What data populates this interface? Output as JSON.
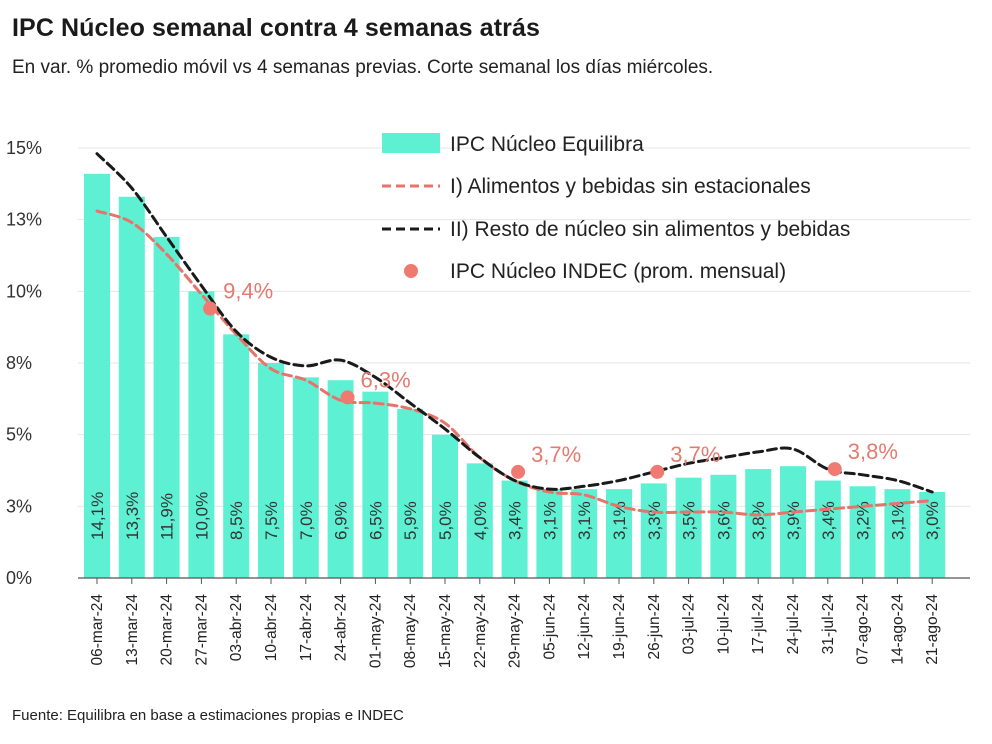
{
  "chart_data": {
    "type": "bar",
    "title": "IPC Núcleo semanal contra 4 semanas atrás",
    "subtitle": "En var. % promedio móvil vs 4 semanas previas. Corte semanal los días miércoles.",
    "source": "Fuente: Equilibra en base a estimaciones propias e INDEC",
    "ylim": [
      0,
      15
    ],
    "yticks": [
      0,
      2.5,
      5,
      7.5,
      10,
      12.5,
      15
    ],
    "ytick_labels": [
      "0%",
      "3%",
      "5%",
      "8%",
      "10%",
      "13%",
      "15%"
    ],
    "categories": [
      "06-mar-24",
      "13-mar-24",
      "20-mar-24",
      "27-mar-24",
      "03-abr-24",
      "10-abr-24",
      "17-abr-24",
      "24-abr-24",
      "01-may-24",
      "08-may-24",
      "15-may-24",
      "22-may-24",
      "29-may-24",
      "05-jun-24",
      "12-jun-24",
      "19-jun-24",
      "26-jun-24",
      "03-jul-24",
      "10-jul-24",
      "17-jul-24",
      "24-jul-24",
      "31-jul-24",
      "07-ago-24",
      "14-ago-24",
      "21-ago-24"
    ],
    "series": [
      {
        "name": "IPC Núcleo Equilibra",
        "kind": "bar",
        "color": "#5ef0d2",
        "values": [
          14.1,
          13.3,
          11.9,
          10.0,
          8.5,
          7.5,
          7.0,
          6.9,
          6.5,
          5.9,
          5.0,
          4.0,
          3.4,
          3.1,
          3.1,
          3.1,
          3.3,
          3.5,
          3.6,
          3.8,
          3.9,
          3.4,
          3.2,
          3.1,
          3.0
        ],
        "labels": [
          "14,1%",
          "13,3%",
          "11,9%",
          "10,0%",
          "8,5%",
          "7,5%",
          "7,0%",
          "6,9%",
          "6,5%",
          "5,9%",
          "5,0%",
          "4,0%",
          "3,4%",
          "3,1%",
          "3,1%",
          "3,1%",
          "3,3%",
          "3,5%",
          "3,6%",
          "3,8%",
          "3,9%",
          "3,4%",
          "3,2%",
          "3,1%",
          "3,0%"
        ]
      },
      {
        "name": "I) Alimentos y bebidas sin estacionales",
        "kind": "line",
        "style": "dashed",
        "color": "#e8736a",
        "values": [
          12.8,
          12.4,
          11.3,
          9.9,
          8.5,
          7.3,
          6.9,
          6.2,
          6.1,
          5.9,
          5.4,
          4.2,
          3.4,
          3.0,
          2.9,
          2.5,
          2.3,
          2.3,
          2.3,
          2.2,
          2.3,
          2.4,
          2.5,
          2.6,
          2.7
        ]
      },
      {
        "name": "II) Resto de núcleo sin alimentos y bebidas",
        "kind": "line",
        "style": "dashed",
        "color": "#1a1a1a",
        "values": [
          14.8,
          13.6,
          11.9,
          10.2,
          8.6,
          7.7,
          7.4,
          7.6,
          7.0,
          6.1,
          5.2,
          4.2,
          3.4,
          3.1,
          3.2,
          3.4,
          3.7,
          4.0,
          4.2,
          4.4,
          4.5,
          3.8,
          3.6,
          3.4,
          3.0
        ]
      },
      {
        "name": "IPC Núcleo INDEC (prom. mensual)",
        "kind": "scatter",
        "color": "#f07a72",
        "points": [
          {
            "index": 3.25,
            "value": 9.4,
            "label": "9,4%"
          },
          {
            "index": 7.2,
            "value": 6.3,
            "label": "6,3%"
          },
          {
            "index": 12.1,
            "value": 3.7,
            "label": "3,7%"
          },
          {
            "index": 16.1,
            "value": 3.7,
            "label": "3,7%"
          },
          {
            "index": 21.2,
            "value": 3.8,
            "label": "3,8%"
          }
        ]
      }
    ],
    "grid": true,
    "legend": "top-right"
  }
}
